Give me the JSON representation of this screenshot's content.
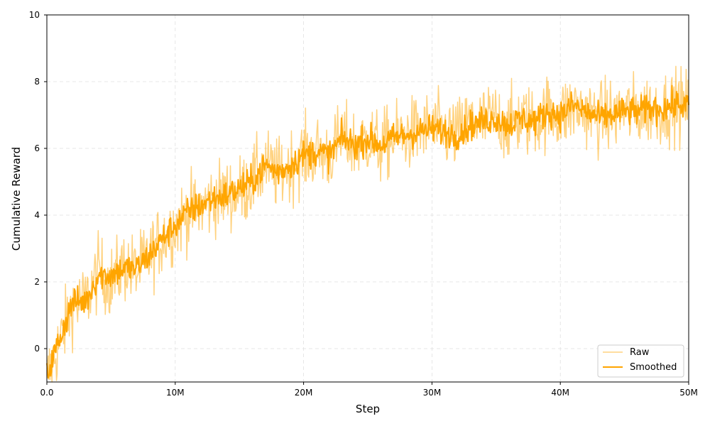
{
  "chart_data": {
    "type": "line",
    "title": "",
    "xlabel": "Step",
    "ylabel": "Cumulative Reward",
    "xlim": [
      0,
      50000000
    ],
    "ylim": [
      -1,
      10
    ],
    "grid": true,
    "legend_position": "bottom-right",
    "x_ticks": [
      {
        "value": 0,
        "label": "0.0"
      },
      {
        "value": 10000000,
        "label": "10M"
      },
      {
        "value": 20000000,
        "label": "20M"
      },
      {
        "value": 30000000,
        "label": "30M"
      },
      {
        "value": 40000000,
        "label": "40M"
      },
      {
        "value": 50000000,
        "label": "50M"
      }
    ],
    "y_ticks": [
      {
        "value": 0,
        "label": "0"
      },
      {
        "value": 2,
        "label": "2"
      },
      {
        "value": 4,
        "label": "4"
      },
      {
        "value": 6,
        "label": "6"
      },
      {
        "value": 8,
        "label": "8"
      },
      {
        "value": 10,
        "label": "10"
      }
    ],
    "x": [
      0,
      1000000,
      2000000,
      3000000,
      4000000,
      5000000,
      6000000,
      7000000,
      8000000,
      9000000,
      10000000,
      11000000,
      12000000,
      13000000,
      14000000,
      15000000,
      16000000,
      17000000,
      18000000,
      19000000,
      20000000,
      21000000,
      22000000,
      23000000,
      24000000,
      25000000,
      26000000,
      27000000,
      28000000,
      29000000,
      30000000,
      31000000,
      32000000,
      33000000,
      34000000,
      35000000,
      36000000,
      37000000,
      38000000,
      39000000,
      40000000,
      41000000,
      42000000,
      43000000,
      44000000,
      45000000,
      46000000,
      47000000,
      48000000,
      49000000,
      50000000
    ],
    "series": [
      {
        "name": "Raw",
        "color": "#ffa500",
        "opacity": 0.5,
        "values": [
          -0.9,
          0.2,
          1.3,
          1.4,
          2.3,
          2.0,
          2.5,
          2.3,
          2.8,
          3.3,
          3.7,
          4.1,
          4.2,
          4.5,
          4.6,
          4.7,
          5.0,
          5.5,
          5.2,
          5.5,
          5.8,
          5.9,
          5.8,
          6.3,
          6.1,
          6.3,
          6.0,
          6.3,
          6.4,
          6.5,
          6.6,
          6.5,
          6.4,
          6.8,
          6.8,
          6.9,
          6.7,
          6.9,
          6.8,
          7.1,
          7.0,
          7.2,
          7.1,
          6.9,
          7.0,
          7.1,
          7.1,
          7.2,
          7.2,
          7.3,
          7.3
        ]
      },
      {
        "name": "Smoothed",
        "color": "#ffa500",
        "opacity": 1,
        "values": [
          -0.8,
          0.3,
          1.4,
          1.4,
          2.2,
          2.2,
          2.4,
          2.4,
          2.8,
          3.3,
          3.7,
          4.1,
          4.3,
          4.5,
          4.6,
          4.8,
          5.0,
          5.5,
          5.3,
          5.5,
          5.8,
          5.9,
          5.8,
          6.3,
          6.1,
          6.3,
          6.1,
          6.3,
          6.4,
          6.5,
          6.6,
          6.5,
          6.4,
          6.7,
          6.8,
          6.9,
          6.7,
          6.9,
          6.8,
          7.1,
          7.0,
          7.3,
          7.1,
          6.9,
          7.0,
          7.1,
          7.1,
          7.2,
          7.2,
          7.3,
          7.3
        ]
      }
    ]
  }
}
